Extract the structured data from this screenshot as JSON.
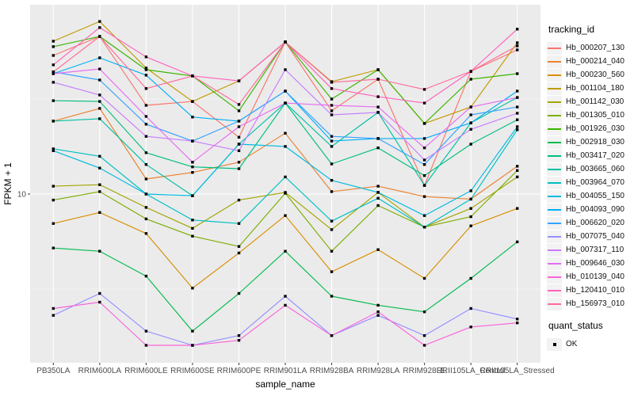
{
  "figure": {
    "background": "#FFFFFF",
    "panel_background": "#EBEBEB",
    "grid_color": "#FFFFFF",
    "tick_text_color": "#4D4D4D",
    "marker_color": "#000000"
  },
  "axes": {
    "x_title": "sample_name",
    "y_title": "FPKM + 1",
    "y_tick_label": "10"
  },
  "legend": {
    "tracking_title": "tracking_id",
    "quant_title": "quant_status",
    "quant_ok_label": "OK"
  },
  "chart_data": {
    "type": "line",
    "title": "",
    "xlabel": "sample_name",
    "ylabel": "FPKM + 1",
    "y_scale": "log10",
    "y_ticks": [
      10
    ],
    "ylim": [
      1.3,
      99
    ],
    "grid": "major-white-on-grey",
    "legend_position": "right",
    "point_marker": "black-square",
    "quant_status": "OK",
    "categories": [
      "PB350LA",
      "RRIM600LA",
      "RRIM600LE",
      "RRIM600SE",
      "RRIM600PE",
      "RRIM901LA",
      "RRIM928BA",
      "RRIM928LA",
      "RRIM928LE",
      "RRII105LA_Control",
      "RRII105LA_Stressed"
    ],
    "series": [
      {
        "name": "Hb_000207_130",
        "color": "#F8766D",
        "values": [
          53.6,
          67.5,
          29.3,
          30.7,
          19.9,
          63.1,
          27.4,
          40.2,
          11.1,
          44.2,
          57.3
        ]
      },
      {
        "name": "Hb_000214_040",
        "color": "#EA8331",
        "values": [
          24.2,
          28.2,
          12.0,
          13.0,
          14.7,
          20.9,
          10.3,
          11.0,
          9.7,
          9.4,
          14.0
        ]
      },
      {
        "name": "Hb_000230_560",
        "color": "#D89000",
        "values": [
          7.0,
          8.0,
          6.2,
          3.2,
          4.9,
          7.7,
          3.9,
          5.1,
          3.6,
          6.8,
          8.4
        ]
      },
      {
        "name": "Hb_001104_180",
        "color": "#C09B00",
        "values": [
          63.7,
          80.9,
          46.0,
          30.7,
          39.4,
          63.1,
          39.0,
          45.1,
          23.5,
          28.7,
          62.5
        ]
      },
      {
        "name": "Hb_001142_030",
        "color": "#A3A500",
        "values": [
          11.0,
          11.2,
          8.5,
          6.6,
          9.3,
          10.2,
          6.5,
          10.2,
          6.7,
          8.4,
          12.3
        ]
      },
      {
        "name": "Hb_001305_010",
        "color": "#7CAE00",
        "values": [
          9.3,
          10.3,
          7.4,
          6.0,
          5.3,
          10.1,
          5.0,
          8.7,
          6.7,
          7.6,
          13.3
        ]
      },
      {
        "name": "Hb_001926_030",
        "color": "#39B600",
        "values": [
          59.6,
          67.5,
          45.1,
          41.8,
          27.4,
          63.1,
          31.6,
          45.1,
          23.5,
          40.2,
          43.0
        ]
      },
      {
        "name": "Hb_002918_030",
        "color": "#00BB4E",
        "values": [
          5.2,
          5.0,
          3.7,
          1.9,
          3.0,
          5.0,
          2.9,
          2.6,
          2.4,
          3.6,
          5.6
        ]
      },
      {
        "name": "Hb_003417_020",
        "color": "#00BF7D",
        "values": [
          31.0,
          30.7,
          16.5,
          13.9,
          13.6,
          30.1,
          14.4,
          17.5,
          12.5,
          18.3,
          24.6
        ]
      },
      {
        "name": "Hb_003665_060",
        "color": "#00C1A3",
        "values": [
          24.2,
          24.9,
          14.3,
          9.8,
          18.3,
          30.1,
          17.8,
          26.9,
          11.1,
          23.7,
          32.2
        ]
      },
      {
        "name": "Hb_003964_070",
        "color": "#00BFC4",
        "values": [
          17.3,
          15.8,
          10.0,
          7.3,
          7.0,
          12.3,
          7.2,
          9.5,
          6.7,
          9.4,
          21.8
        ]
      },
      {
        "name": "Hb_004055_150",
        "color": "#00BAE0",
        "values": [
          16.9,
          13.7,
          10.0,
          9.8,
          18.3,
          17.8,
          11.8,
          10.2,
          7.7,
          10.4,
          22.6
        ]
      },
      {
        "name": "Hb_004093_090",
        "color": "#00B0F6",
        "values": [
          43.0,
          52.1,
          42.2,
          25.4,
          24.2,
          34.8,
          19.0,
          19.6,
          19.6,
          23.7,
          34.8
        ]
      },
      {
        "name": "Hb_006620_020",
        "color": "#35A2FF",
        "values": [
          43.9,
          39.8,
          23.3,
          19.0,
          24.2,
          34.8,
          20.1,
          19.6,
          14.3,
          26.1,
          28.7
        ]
      },
      {
        "name": "Hb_007075_040",
        "color": "#9590FF",
        "values": [
          2.3,
          3.0,
          1.9,
          1.6,
          1.8,
          2.9,
          1.8,
          2.3,
          1.8,
          2.5,
          2.2
        ]
      },
      {
        "name": "Hb_007317_110",
        "color": "#C77CFF",
        "values": [
          38.7,
          33.2,
          20.1,
          19.0,
          16.9,
          45.1,
          26.1,
          26.9,
          15.1,
          21.9,
          26.6
        ]
      },
      {
        "name": "Hb_009646_030",
        "color": "#E76BF3",
        "values": [
          43.0,
          45.5,
          25.6,
          14.7,
          22.6,
          30.1,
          29.3,
          28.7,
          17.5,
          28.7,
          32.2
        ]
      },
      {
        "name": "Hb_010139_040",
        "color": "#FA62DB",
        "values": [
          2.5,
          2.7,
          1.6,
          1.6,
          1.7,
          2.6,
          1.8,
          2.4,
          1.6,
          2.0,
          2.1
        ]
      },
      {
        "name": "Hb_120410_010",
        "color": "#FF62BC",
        "values": [
          47.8,
          75.1,
          52.7,
          41.8,
          39.4,
          63.1,
          35.9,
          32.5,
          30.1,
          44.2,
          73.7
        ]
      },
      {
        "name": "Hb_156973_010",
        "color": "#FF6A98",
        "values": [
          43.9,
          67.5,
          35.9,
          41.8,
          29.6,
          63.1,
          38.7,
          40.2,
          35.5,
          44.2,
          60.2
        ]
      }
    ]
  }
}
